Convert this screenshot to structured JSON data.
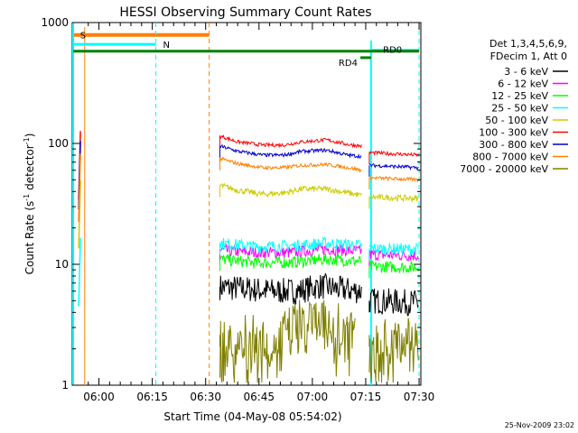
{
  "chart_data": {
    "type": "line",
    "title": "HESSI Observing Summary Count Rates",
    "xlabel": "Start Time (04-May-08 05:54:02)",
    "ylabel_parts": [
      "Count Rate (s",
      "-1",
      " detector",
      "-1",
      ")"
    ],
    "y_scale": "log",
    "ylim": [
      1,
      1000
    ],
    "xlim_minutes_from_0554": [
      0,
      96
    ],
    "x_ticks": [
      {
        "t": 6,
        "label": "06:00"
      },
      {
        "t": 21,
        "label": "06:15"
      },
      {
        "t": 36,
        "label": "06:30"
      },
      {
        "t": 51,
        "label": "06:45"
      },
      {
        "t": 66,
        "label": "07:00"
      },
      {
        "t": 81,
        "label": "07:15"
      },
      {
        "t": 96,
        "label": "07:30"
      }
    ],
    "y_ticks": [
      {
        "v": 1,
        "label": "1"
      },
      {
        "v": 10,
        "label": "10"
      },
      {
        "v": 100,
        "label": "100"
      },
      {
        "v": 1000,
        "label": "1000"
      }
    ],
    "legend": {
      "title_lines": [
        "Det 1,3,4,5,6,9,",
        "FDecim 1, Att 0"
      ],
      "position": "right"
    },
    "series": [
      {
        "name": "3 - 6 keV",
        "color": "#000000",
        "segments": [
          {
            "x": [
              40,
              55,
              62,
              68,
              74,
              80
            ],
            "y": [
              6.5,
              6,
              6,
              6.6,
              6.2,
              6
            ]
          },
          {
            "x": [
              82,
              96
            ],
            "y": [
              5,
              4.8
            ]
          }
        ]
      },
      {
        "name": "6 - 12 keV",
        "color": "#ff00ff",
        "segments": [
          {
            "x": [
              40,
              50,
              60,
              70,
              80
            ],
            "y": [
              13,
              12.5,
              12.5,
              13.4,
              12.8
            ]
          },
          {
            "x": [
              82,
              96
            ],
            "y": [
              12,
              11.8
            ]
          }
        ]
      },
      {
        "name": "12 - 25 keV",
        "color": "#00ff00",
        "segments": [
          {
            "x": [
              40,
              50,
              60,
              70,
              80
            ],
            "y": [
              11,
              10.3,
              10.4,
              11,
              10.6
            ]
          },
          {
            "x": [
              82,
              96
            ],
            "y": [
              9.6,
              9.4
            ]
          }
        ]
      },
      {
        "name": "25 - 50 keV",
        "color": "#00ffff",
        "segments": [
          {
            "x": [
              40,
              50,
              60,
              70,
              80
            ],
            "y": [
              15,
              14,
              14.2,
              15,
              14.3
            ]
          },
          {
            "x": [
              82,
              96
            ],
            "y": [
              13.5,
              13.3
            ]
          }
        ]
      },
      {
        "name": "50 - 100 keV",
        "color": "#cccc00",
        "segments": [
          {
            "x": [
              40,
              45,
              52,
              58,
              63,
              70,
              76,
              80
            ],
            "y": [
              45,
              41,
              38,
              39,
              42,
              42,
              39,
              37
            ]
          },
          {
            "x": [
              82,
              96
            ],
            "y": [
              36,
              35
            ]
          }
        ]
      },
      {
        "name": "100 - 300 keV",
        "color": "#ff0000",
        "segments": [
          {
            "x": [
              40,
              45,
              52,
              58,
              63,
              70,
              76,
              80
            ],
            "y": [
              115,
              103,
              97,
              97,
              103,
              107,
              98,
              95
            ]
          },
          {
            "x": [
              82,
              96
            ],
            "y": [
              84,
              80
            ]
          }
        ]
      },
      {
        "name": "300 - 800 keV",
        "color": "#0000cc",
        "segments": [
          {
            "x": [
              40,
              45,
              52,
              58,
              63,
              70,
              76,
              80
            ],
            "y": [
              95,
              86,
              80,
              80,
              86,
              88,
              80,
              78
            ]
          },
          {
            "x": [
              82,
              96
            ],
            "y": [
              66,
              63
            ]
          }
        ]
      },
      {
        "name": "800 - 7000 keV",
        "color": "#ff8000",
        "segments": [
          {
            "x": [
              40,
              45,
              52,
              58,
              63,
              70,
              76,
              80
            ],
            "y": [
              75,
              68,
              63,
              63,
              66,
              67,
              63,
              60
            ]
          },
          {
            "x": [
              82,
              96
            ],
            "y": [
              52,
              50
            ]
          }
        ]
      },
      {
        "name": "7000 - 20000 keV",
        "color": "#808000",
        "segments": [
          {
            "x": [
              40,
              52,
              54,
              60,
              62,
              68,
              72,
              78
            ],
            "y": [
              2.6,
              2.6,
              2.1,
              3.2,
              3.5,
              3.5,
              3.2,
              3.2
            ]
          },
          {
            "x": [
              82,
              96
            ],
            "y": [
              2.6,
              2.5
            ]
          }
        ]
      }
    ],
    "annotations": [
      {
        "label": "S",
        "color": "#ff8000",
        "t": 0.2,
        "v": 790
      },
      {
        "label": "N",
        "color": "#00ffff",
        "t": 24,
        "v": 660
      },
      {
        "label": "RD4",
        "color": "#008000",
        "t": 81,
        "v": 470
      },
      {
        "label": "RD0",
        "color": "#008000",
        "t": 94,
        "v": 590
      }
    ]
  },
  "footer": {
    "timestamp": "25-Nov-2009 23:02"
  }
}
